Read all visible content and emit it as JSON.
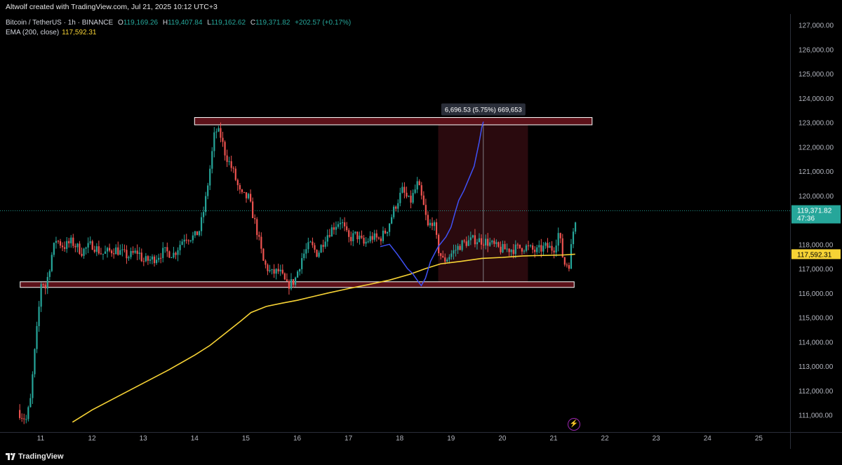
{
  "header": {
    "attribution": "Altwolf created with TradingView.com, Jul 21, 2025 10:12 UTC+3"
  },
  "legend": {
    "symbol": "Bitcoin / TetherUS · 1h · BINANCE",
    "open_label": "O",
    "open": "119,169.26",
    "high_label": "H",
    "high": "119,407.84",
    "low_label": "L",
    "low": "119,162.62",
    "close_label": "C",
    "close": "119,371.82",
    "change": "+202.57 (+0.17%)",
    "ema_label": "EMA (200, close)",
    "ema_value": "117,592.31"
  },
  "footer": {
    "brand": "TradingView"
  },
  "colors": {
    "up": "#26a69a",
    "down": "#ef5350",
    "ema": "#f7d335",
    "projection": "#3f51f5",
    "zone_fill": "#5c1119",
    "zone_border": "#ffffff",
    "measure_fill": "#2a0a0e",
    "price_tag": "#26a69a",
    "ema_tag": "#f7d335"
  },
  "chart_data": {
    "type": "candlestick",
    "y_axis_ticks": [
      "127,000.00",
      "126,000.00",
      "125,000.00",
      "124,000.00",
      "123,000.00",
      "122,000.00",
      "121,000.00",
      "120,000.00",
      "119,000.00",
      "118,000.00",
      "117,000.00",
      "116,000.00",
      "115,000.00",
      "114,000.00",
      "113,000.00",
      "112,000.00",
      "111,000.00"
    ],
    "ylim": [
      110600,
      127400
    ],
    "x_axis_ticks": [
      "11",
      "12",
      "13",
      "14",
      "15",
      "16",
      "17",
      "18",
      "19",
      "20",
      "21",
      "22",
      "23",
      "24",
      "25"
    ],
    "x_domain_days": [
      10.6,
      25.6
    ],
    "last_price_tag": {
      "price": "119,371.82",
      "countdown": "47:36",
      "value": 119371.82
    },
    "ema_tag": {
      "price": "117,592.31",
      "value": 117592.31
    },
    "ema_series": [
      [
        11.62,
        110700
      ],
      [
        12.0,
        111200
      ],
      [
        12.5,
        111750
      ],
      [
        13.0,
        112300
      ],
      [
        13.5,
        112850
      ],
      [
        14.0,
        113450
      ],
      [
        14.3,
        113850
      ],
      [
        14.6,
        114350
      ],
      [
        14.9,
        114850
      ],
      [
        15.1,
        115200
      ],
      [
        15.4,
        115450
      ],
      [
        15.7,
        115580
      ],
      [
        16.0,
        115700
      ],
      [
        16.3,
        115850
      ],
      [
        16.6,
        116000
      ],
      [
        17.0,
        116180
      ],
      [
        17.4,
        116350
      ],
      [
        17.8,
        116530
      ],
      [
        18.2,
        116770
      ],
      [
        18.5,
        117000
      ],
      [
        18.8,
        117200
      ],
      [
        19.2,
        117300
      ],
      [
        19.6,
        117420
      ],
      [
        20.0,
        117460
      ],
      [
        20.4,
        117520
      ],
      [
        20.8,
        117540
      ],
      [
        21.2,
        117560
      ],
      [
        21.42,
        117592
      ]
    ],
    "candles_anchor_path": [
      [
        10.55,
        111200
      ],
      [
        10.62,
        111000
      ],
      [
        10.72,
        110800
      ],
      [
        10.8,
        111600
      ],
      [
        10.88,
        113500
      ],
      [
        10.95,
        115000
      ],
      [
        11.02,
        116700
      ],
      [
        11.08,
        116100
      ],
      [
        11.15,
        116800
      ],
      [
        11.22,
        117600
      ],
      [
        11.3,
        118200
      ],
      [
        11.45,
        117900
      ],
      [
        11.6,
        118100
      ],
      [
        11.8,
        117700
      ],
      [
        12.0,
        118000
      ],
      [
        12.2,
        117600
      ],
      [
        12.45,
        117800
      ],
      [
        12.7,
        117500
      ],
      [
        12.9,
        117700
      ],
      [
        13.0,
        117300
      ],
      [
        13.2,
        117400
      ],
      [
        13.4,
        117700
      ],
      [
        13.6,
        117600
      ],
      [
        13.8,
        118300
      ],
      [
        14.0,
        118300
      ],
      [
        14.1,
        118600
      ],
      [
        14.2,
        119600
      ],
      [
        14.32,
        121400
      ],
      [
        14.4,
        122700
      ],
      [
        14.5,
        122500
      ],
      [
        14.6,
        121700
      ],
      [
        14.75,
        121000
      ],
      [
        14.9,
        120000
      ],
      [
        15.05,
        119900
      ],
      [
        15.2,
        118700
      ],
      [
        15.35,
        117200
      ],
      [
        15.5,
        116800
      ],
      [
        15.65,
        116900
      ],
      [
        15.8,
        116300
      ],
      [
        15.95,
        116500
      ],
      [
        16.1,
        117500
      ],
      [
        16.25,
        118000
      ],
      [
        16.4,
        117600
      ],
      [
        16.55,
        118300
      ],
      [
        16.7,
        118700
      ],
      [
        16.85,
        119000
      ],
      [
        17.0,
        118200
      ],
      [
        17.15,
        118400
      ],
      [
        17.3,
        118000
      ],
      [
        17.45,
        118300
      ],
      [
        17.6,
        118200
      ],
      [
        17.75,
        118600
      ],
      [
        17.9,
        119500
      ],
      [
        18.05,
        120200
      ],
      [
        18.2,
        119700
      ],
      [
        18.35,
        120500
      ],
      [
        18.45,
        119700
      ],
      [
        18.55,
        118700
      ],
      [
        18.65,
        119000
      ],
      [
        18.75,
        117800
      ],
      [
        18.85,
        117300
      ],
      [
        19.0,
        117600
      ],
      [
        19.2,
        118000
      ],
      [
        19.45,
        118200
      ],
      [
        19.7,
        118100
      ],
      [
        19.95,
        117800
      ],
      [
        20.2,
        117800
      ],
      [
        20.45,
        117900
      ],
      [
        20.65,
        117700
      ],
      [
        20.85,
        117900
      ],
      [
        21.0,
        117800
      ],
      [
        21.1,
        118500
      ],
      [
        21.2,
        117200
      ],
      [
        21.3,
        117200
      ],
      [
        21.38,
        118500
      ],
      [
        21.42,
        119000
      ],
      [
        21.46,
        119370
      ]
    ],
    "zones": [
      {
        "name": "resistance",
        "x_from": 14.0,
        "x_to": 21.75,
        "y_from": 122900,
        "y_to": 123200
      },
      {
        "name": "support",
        "x_from": 10.6,
        "x_to": 21.4,
        "y_from": 116230,
        "y_to": 116460
      }
    ],
    "measure": {
      "label": "6,696.53 (5.75%) 669,653",
      "x_from": 18.75,
      "x_to": 20.5,
      "y_from": 116330,
      "y_to": 123030,
      "x_mid": 19.63
    },
    "projection_path": [
      [
        17.62,
        117900
      ],
      [
        17.8,
        118000
      ],
      [
        17.95,
        117600
      ],
      [
        18.05,
        117300
      ],
      [
        18.15,
        117000
      ],
      [
        18.25,
        116800
      ],
      [
        18.35,
        116500
      ],
      [
        18.42,
        116300
      ],
      [
        18.5,
        116600
      ],
      [
        18.6,
        117300
      ],
      [
        18.75,
        117900
      ],
      [
        18.9,
        118300
      ],
      [
        19.0,
        118700
      ],
      [
        19.08,
        119300
      ],
      [
        19.15,
        119800
      ],
      [
        19.25,
        120200
      ],
      [
        19.35,
        120700
      ],
      [
        19.45,
        121200
      ],
      [
        19.55,
        122200
      ],
      [
        19.6,
        122800
      ],
      [
        19.63,
        123030
      ]
    ]
  }
}
